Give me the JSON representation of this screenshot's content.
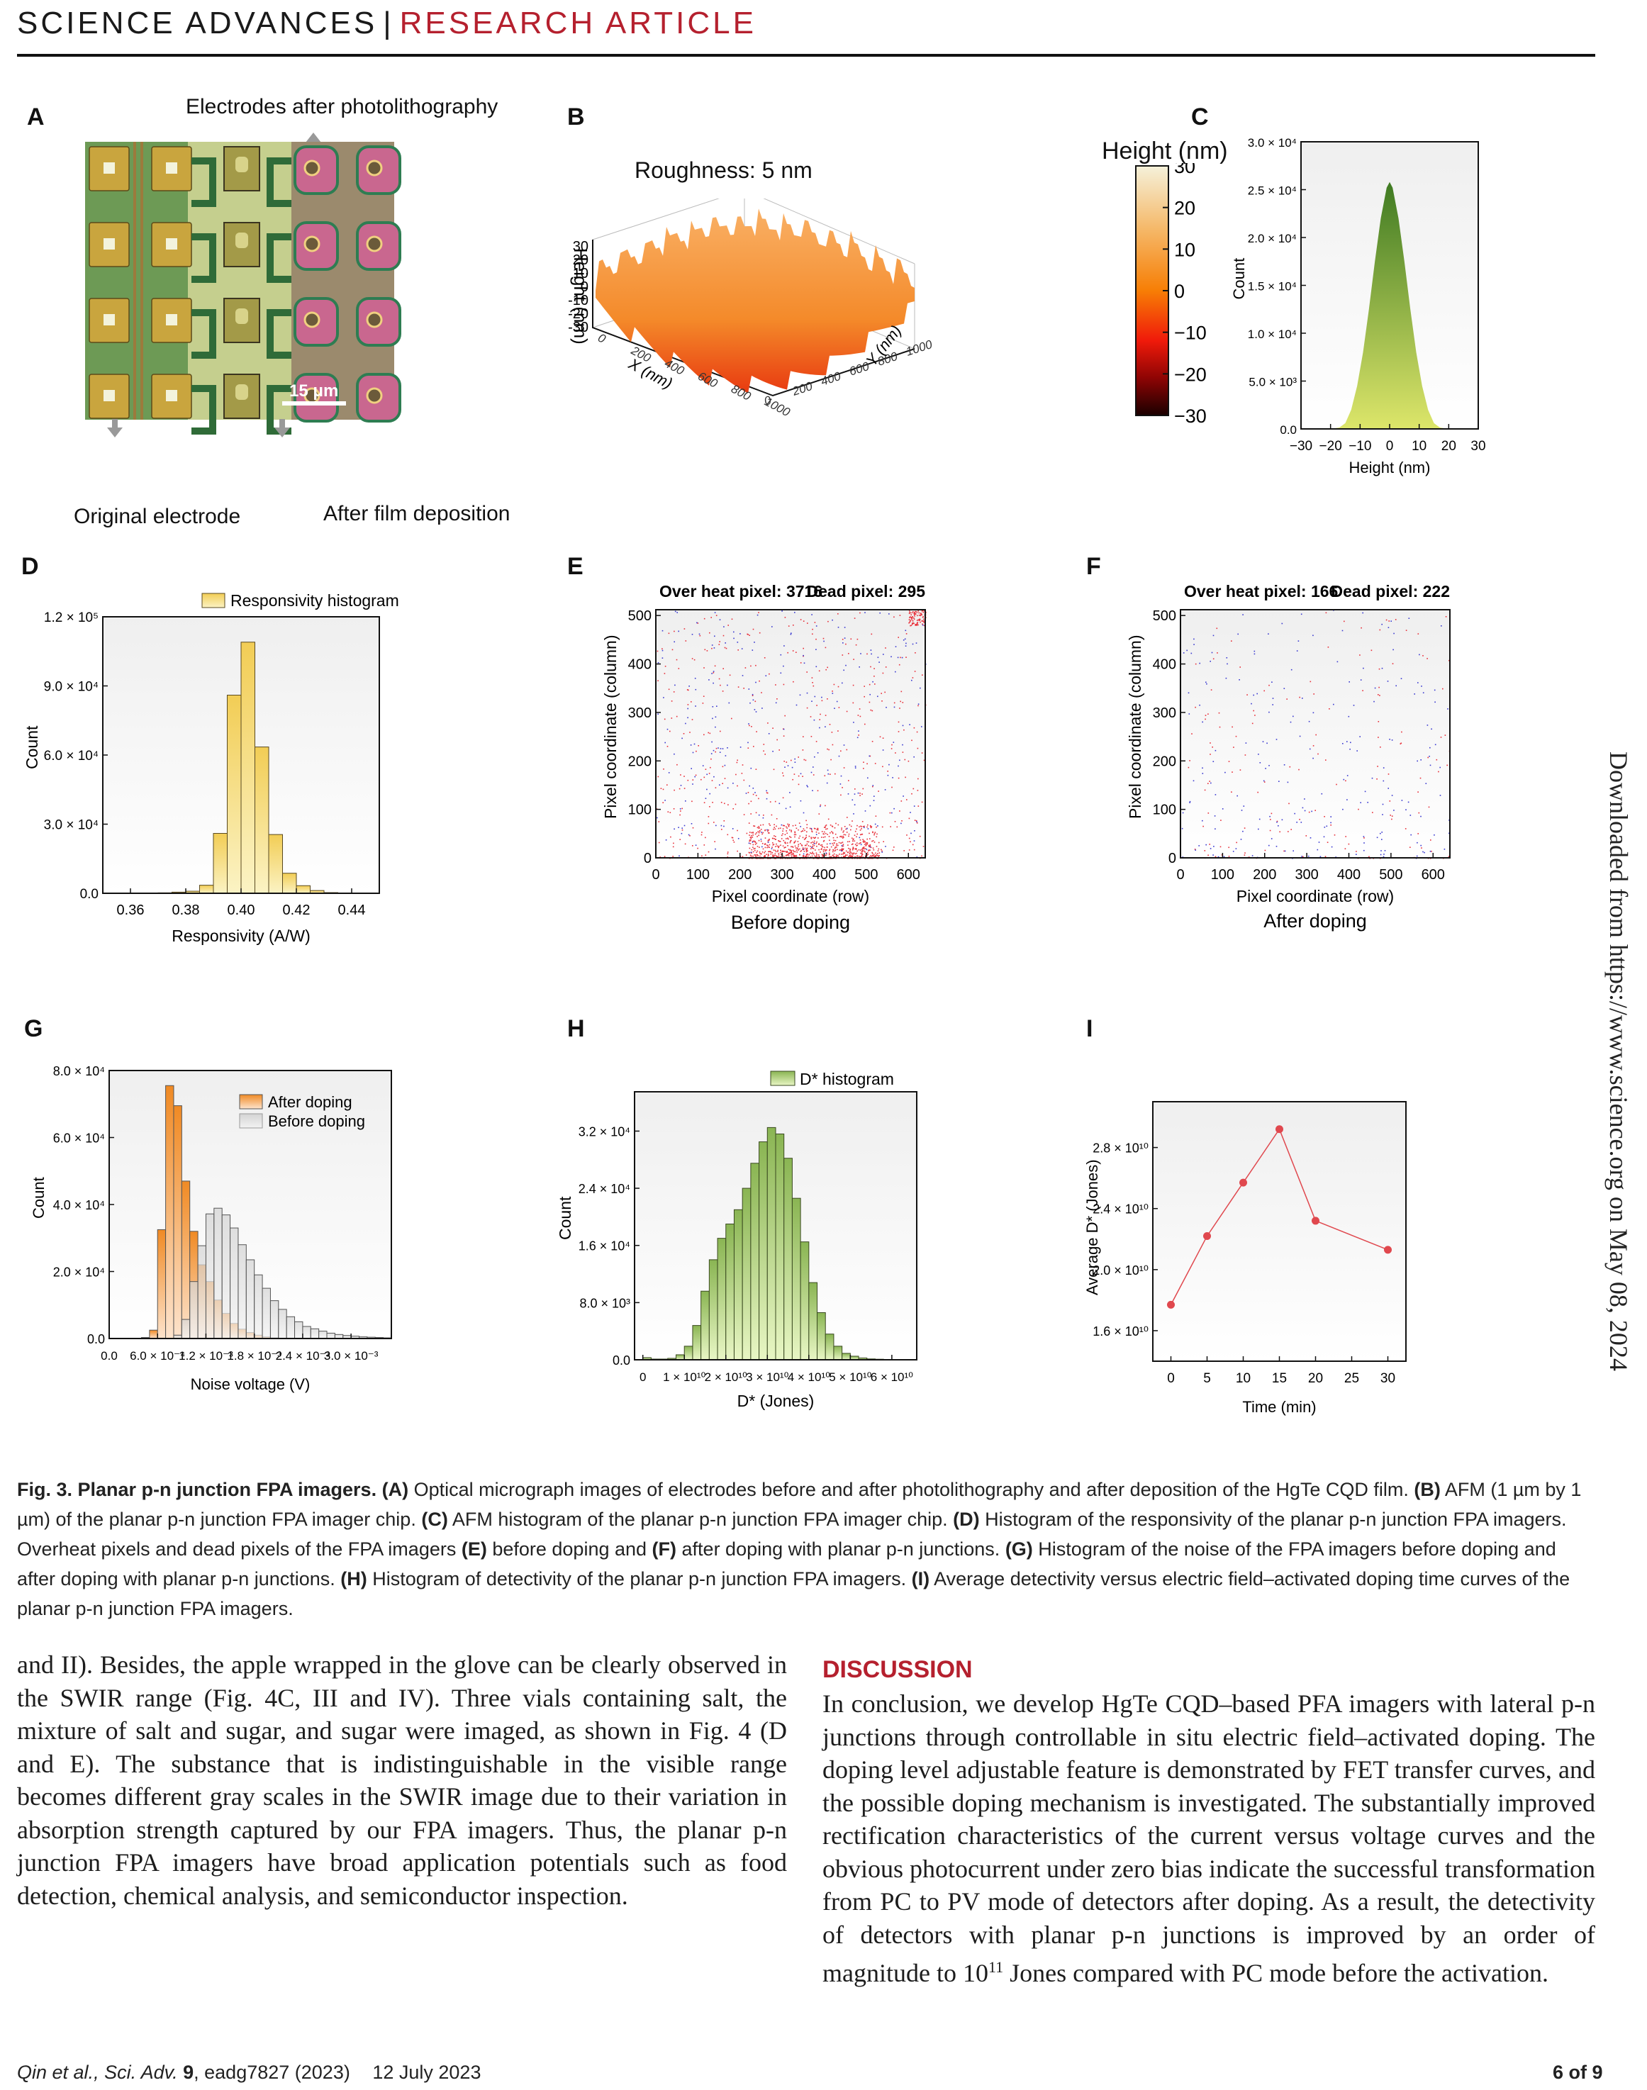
{
  "header": {
    "journal": "SCIENCE ADVANCES",
    "separator": "|",
    "section": "RESEARCH ARTICLE"
  },
  "side_note": "Downloaded from https://www.science.org on May 08, 2024",
  "panels": {
    "A": {
      "label": "A",
      "top_annotation": "Electrodes after photolithography",
      "bottom_left_annotation": "Original electrode",
      "bottom_right_annotation": "After film deposition",
      "scale_bar": "15 μm"
    },
    "B": {
      "label": "B",
      "roughness": "Roughness: 5 nm",
      "z_label": "Height (nm)",
      "x_label": "X (nm)",
      "y_label": "Y (nm)",
      "z_ticks": [
        "30",
        "20",
        "10",
        "0",
        "-10",
        "-20",
        "-30"
      ],
      "x_ticks": [
        "0",
        "200",
        "400",
        "600",
        "800",
        "1000"
      ],
      "y_ticks": [
        "0",
        "200",
        "400",
        "600",
        "800",
        "1000"
      ],
      "colorbar_title": "Height (nm)",
      "colorbar_ticks": [
        "30",
        "20",
        "10",
        "0",
        "−10",
        "−20",
        "−30"
      ]
    },
    "C": {
      "label": "C"
    },
    "D": {
      "label": "D"
    },
    "E": {
      "label": "E",
      "subtitle": "Before doping"
    },
    "F": {
      "label": "F",
      "subtitle": "After doping"
    },
    "G": {
      "label": "G"
    },
    "H": {
      "label": "H"
    },
    "I": {
      "label": "I"
    }
  },
  "chart_data": [
    {
      "id": "C",
      "type": "area",
      "title": "",
      "xlabel": "Height (nm)",
      "ylabel": "Count",
      "xlim": [
        -30,
        30
      ],
      "ylim": [
        0,
        30000
      ],
      "x_ticks": [
        "−30",
        "−20",
        "−10",
        "0",
        "10",
        "20",
        "30"
      ],
      "y_ticks": [
        "0.0",
        "5.0 × 10³",
        "1.0 × 10⁴",
        "1.5 × 10⁴",
        "2.0 × 10⁴",
        "2.5 × 10⁴",
        "3.0 × 10⁴"
      ],
      "x": [
        -20,
        -17,
        -15,
        -13,
        -11,
        -9,
        -7,
        -5,
        -3,
        -1,
        0,
        1,
        3,
        5,
        7,
        9,
        11,
        13,
        15,
        17,
        20
      ],
      "values": [
        0,
        150,
        600,
        2000,
        4500,
        8000,
        12500,
        17500,
        22000,
        25200,
        25800,
        25200,
        22000,
        17500,
        12500,
        8000,
        4500,
        2000,
        600,
        150,
        0
      ]
    },
    {
      "id": "D",
      "type": "bar",
      "title": "",
      "legend": [
        "Responsivity histogram"
      ],
      "xlabel": "Responsivity (A/W)",
      "ylabel": "Count",
      "xlim": [
        0.35,
        0.45
      ],
      "ylim": [
        0,
        120000
      ],
      "x_ticks": [
        "0.36",
        "0.38",
        "0.40",
        "0.42",
        "0.44"
      ],
      "y_ticks": [
        "0.0",
        "3.0 × 10⁴",
        "6.0 × 10⁴",
        "9.0 × 10⁴",
        "1.2 × 10⁵"
      ],
      "bin_width": 0.005,
      "bin_starts": [
        0.37,
        0.375,
        0.38,
        0.385,
        0.39,
        0.395,
        0.4,
        0.405,
        0.41,
        0.415,
        0.42,
        0.425,
        0.43,
        0.435
      ],
      "values": [
        200,
        500,
        900,
        3500,
        26000,
        86000,
        109000,
        63500,
        25500,
        8700,
        3300,
        1200,
        300,
        100
      ]
    },
    {
      "id": "E",
      "type": "scatter",
      "title": "",
      "annotations": [
        "Over heat pixel: 3716",
        "Dead pixel: 295"
      ],
      "xlabel": "Pixel coordinate (row)",
      "ylabel": "Pixel coordinate (column)",
      "xlim": [
        0,
        640
      ],
      "ylim": [
        0,
        512
      ],
      "x_ticks": [
        "0",
        "100",
        "200",
        "300",
        "400",
        "500",
        "600"
      ],
      "y_ticks": [
        "0",
        "100",
        "200",
        "300",
        "400",
        "500"
      ],
      "series": [
        {
          "name": "Over heat pixel",
          "count": 3716,
          "color": "#e8303a",
          "density": "concentrated at column < 60, rows 220–530; cluster near row 630 column 500"
        },
        {
          "name": "Dead pixel",
          "count": 295,
          "color": "#3a3ad0",
          "density": "sparse uniform"
        }
      ]
    },
    {
      "id": "F",
      "type": "scatter",
      "title": "",
      "annotations": [
        "Over heat pixel: 166",
        "Dead pixel: 222"
      ],
      "xlabel": "Pixel coordinate (row)",
      "ylabel": "Pixel coordinate (column)",
      "xlim": [
        0,
        640
      ],
      "ylim": [
        0,
        512
      ],
      "x_ticks": [
        "0",
        "100",
        "200",
        "300",
        "400",
        "500",
        "600"
      ],
      "y_ticks": [
        "0",
        "100",
        "200",
        "300",
        "400",
        "500"
      ],
      "series": [
        {
          "name": "Over heat pixel",
          "count": 166,
          "color": "#e8303a"
        },
        {
          "name": "Dead pixel",
          "count": 222,
          "color": "#3a3ad0"
        }
      ]
    },
    {
      "id": "G",
      "type": "bar",
      "title": "",
      "xlabel": "Noise voltage (V)",
      "ylabel": "Count",
      "xlim": [
        0,
        0.0035
      ],
      "ylim": [
        0,
        80000
      ],
      "x_ticks": [
        "0.0",
        "6.0 × 10⁻⁴",
        "1.2 × 10⁻³",
        "1.8 × 10⁻³",
        "2.4 × 10⁻³",
        "3.0 × 10⁻³"
      ],
      "y_ticks": [
        "0.0",
        "2.0 × 10⁴",
        "4.0 × 10⁴",
        "6.0 × 10⁴",
        "8.0 × 10⁴"
      ],
      "bin_width": 0.0001,
      "legend": [
        "After doping",
        "Before doping"
      ],
      "series": [
        {
          "name": "After doping",
          "color": "#f08a24",
          "bin_starts": [
            0.0004,
            0.0005,
            0.0006,
            0.0007,
            0.0008,
            0.0009,
            0.001,
            0.0011,
            0.0012,
            0.0013,
            0.0014,
            0.0015,
            0.0016,
            0.0017,
            0.0018,
            0.0019,
            0.002
          ],
          "values": [
            300,
            2500,
            32500,
            75500,
            69500,
            47000,
            32000,
            22000,
            17000,
            11500,
            7500,
            4500,
            2800,
            1800,
            1000,
            500,
            200
          ]
        },
        {
          "name": "Before doping",
          "color": "#d9d9d9",
          "bin_starts": [
            0.0008,
            0.0009,
            0.001,
            0.0011,
            0.0012,
            0.0013,
            0.0014,
            0.0015,
            0.0016,
            0.0017,
            0.0018,
            0.0019,
            0.002,
            0.0021,
            0.0022,
            0.0023,
            0.0024,
            0.0025,
            0.0026,
            0.0027,
            0.0028,
            0.0029,
            0.003,
            0.0031,
            0.0032,
            0.0033,
            0.0034
          ],
          "values": [
            1000,
            5700,
            17000,
            27700,
            37200,
            38900,
            36900,
            33000,
            28000,
            23500,
            19000,
            15000,
            11300,
            8700,
            6500,
            5000,
            3600,
            2900,
            2200,
            1600,
            1200,
            900,
            700,
            500,
            400,
            300,
            200
          ]
        }
      ]
    },
    {
      "id": "H",
      "type": "bar",
      "title": "",
      "legend": [
        "D* histogram"
      ],
      "xlabel": "D* (Jones)",
      "ylabel": "Count",
      "xlim": [
        -2000000000.0,
        66000000000.0
      ],
      "ylim": [
        0,
        37500
      ],
      "x_ticks": [
        "0",
        "1 × 10¹⁰",
        "2 × 10¹⁰",
        "3 × 10¹⁰",
        "4 × 10¹⁰",
        "5 × 10¹⁰",
        "6 × 10¹⁰"
      ],
      "y_ticks": [
        "0.0",
        "8.0 × 10³",
        "1.6 × 10⁴",
        "2.4 × 10⁴",
        "3.2 × 10⁴"
      ],
      "bin_width": 2000000000.0,
      "bin_starts": [
        0,
        2000000000.0,
        4000000000.0,
        6000000000.0,
        8000000000.0,
        10000000000.0,
        12000000000.0,
        14000000000.0,
        16000000000.0,
        18000000000.0,
        20000000000.0,
        22000000000.0,
        24000000000.0,
        26000000000.0,
        28000000000.0,
        30000000000.0,
        32000000000.0,
        34000000000.0,
        36000000000.0,
        38000000000.0,
        40000000000.0,
        42000000000.0,
        44000000000.0,
        46000000000.0,
        48000000000.0,
        50000000000.0,
        52000000000.0,
        54000000000.0,
        56000000000.0,
        58000000000.0,
        60000000000.0,
        62000000000.0,
        64000000000.0
      ],
      "values": [
        300,
        100,
        100,
        200,
        700,
        1900,
        4800,
        9600,
        14000,
        17000,
        19000,
        21000,
        24000,
        27500,
        30500,
        32500,
        31600,
        28200,
        22600,
        16500,
        10800,
        6600,
        3600,
        1900,
        900,
        500,
        250,
        120,
        80,
        50,
        30,
        20,
        10
      ]
    },
    {
      "id": "I",
      "type": "line",
      "title": "",
      "xlabel": "Time (min)",
      "ylabel": "Average D* (Jones)",
      "xlim": [
        -2.5,
        32.5
      ],
      "ylim": [
        14000000000.0,
        31000000000.0
      ],
      "x_ticks": [
        "0",
        "5",
        "10",
        "15",
        "20",
        "25",
        "30"
      ],
      "y_ticks": [
        "1.6 × 10¹⁰",
        "2.0 × 10¹⁰",
        "2.4 × 10¹⁰",
        "2.8 × 10¹⁰"
      ],
      "x": [
        0,
        5,
        10,
        15,
        20,
        30
      ],
      "values": [
        17700000000.0,
        22200000000.0,
        25700000000.0,
        29200000000.0,
        23200000000.0,
        21300000000.0
      ],
      "color": "#e0484e"
    }
  ],
  "caption": {
    "title": "Fig. 3. Planar p-n junction FPA imagers.",
    "parts": [
      {
        "tag": "(A)",
        "text": " Optical micrograph images of electrodes before and after photolithography and after deposition of the HgTe CQD film. "
      },
      {
        "tag": "(B)",
        "text": " AFM (1 µm by 1 µm) of the planar p-n junction FPA imager chip. "
      },
      {
        "tag": "(C)",
        "text": " AFM histogram of the planar p-n junction FPA imager chip. "
      },
      {
        "tag": "(D)",
        "text": " Histogram of the responsivity of the planar p-n junction FPA imagers. Overheat pixels and dead pixels of the FPA imagers "
      },
      {
        "tag": "(E)",
        "text": " before doping and "
      },
      {
        "tag": "(F)",
        "text": " after doping with planar p-n junctions. "
      },
      {
        "tag": "(G)",
        "text": " Histogram of the noise of the FPA imagers before doping and after doping with planar p-n junctions. "
      },
      {
        "tag": "(H)",
        "text": " Histogram of detectivity of the planar p-n junction FPA imagers. "
      },
      {
        "tag": "(I)",
        "text": " Average detectivity versus electric field–activated doping time curves of the planar p-n junction FPA imagers."
      }
    ]
  },
  "body": {
    "left_paragraph": "and II). Besides, the apple wrapped in the glove can be clearly observed in the SWIR range (Fig. 4C, III and IV). Three vials containing salt, the mixture of salt and sugar, and sugar were imaged, as shown in Fig. 4 (D and E). The substance that is indistinguishable in the visible range becomes different gray scales in the SWIR image due to their variation in absorption strength captured by our FPA imagers. Thus, the planar p-n junction FPA imagers have broad application potentials such as food detection, chemical analysis, and semiconductor inspection.",
    "discussion_heading": "DISCUSSION",
    "discussion_paragraph_a": "In conclusion, we develop HgTe CQD–based PFA imagers with lateral p-n junctions through controllable in situ electric field–activated doping. The doping level adjustable feature is demonstrated by FET transfer curves, and the possible doping mechanism is investigated. The substantially improved rectification characteristics of the current versus voltage curves and the obvious photocurrent under zero bias indicate the successful transformation from PC to PV mode of detectors after doping. As a result, the detectivity of detectors with planar p-n junctions is improved by an order of magnitude to 10",
    "discussion_sup": "11",
    "discussion_paragraph_b": " Jones compared with PC mode before the activation."
  },
  "footer": {
    "citation_authors": "Qin et al.",
    "citation_journal": ", Sci. Adv. ",
    "citation_volume": "9",
    "citation_rest": ", eadg7827 (2023)",
    "date": "12 July 2023",
    "page": "6 of 9"
  }
}
